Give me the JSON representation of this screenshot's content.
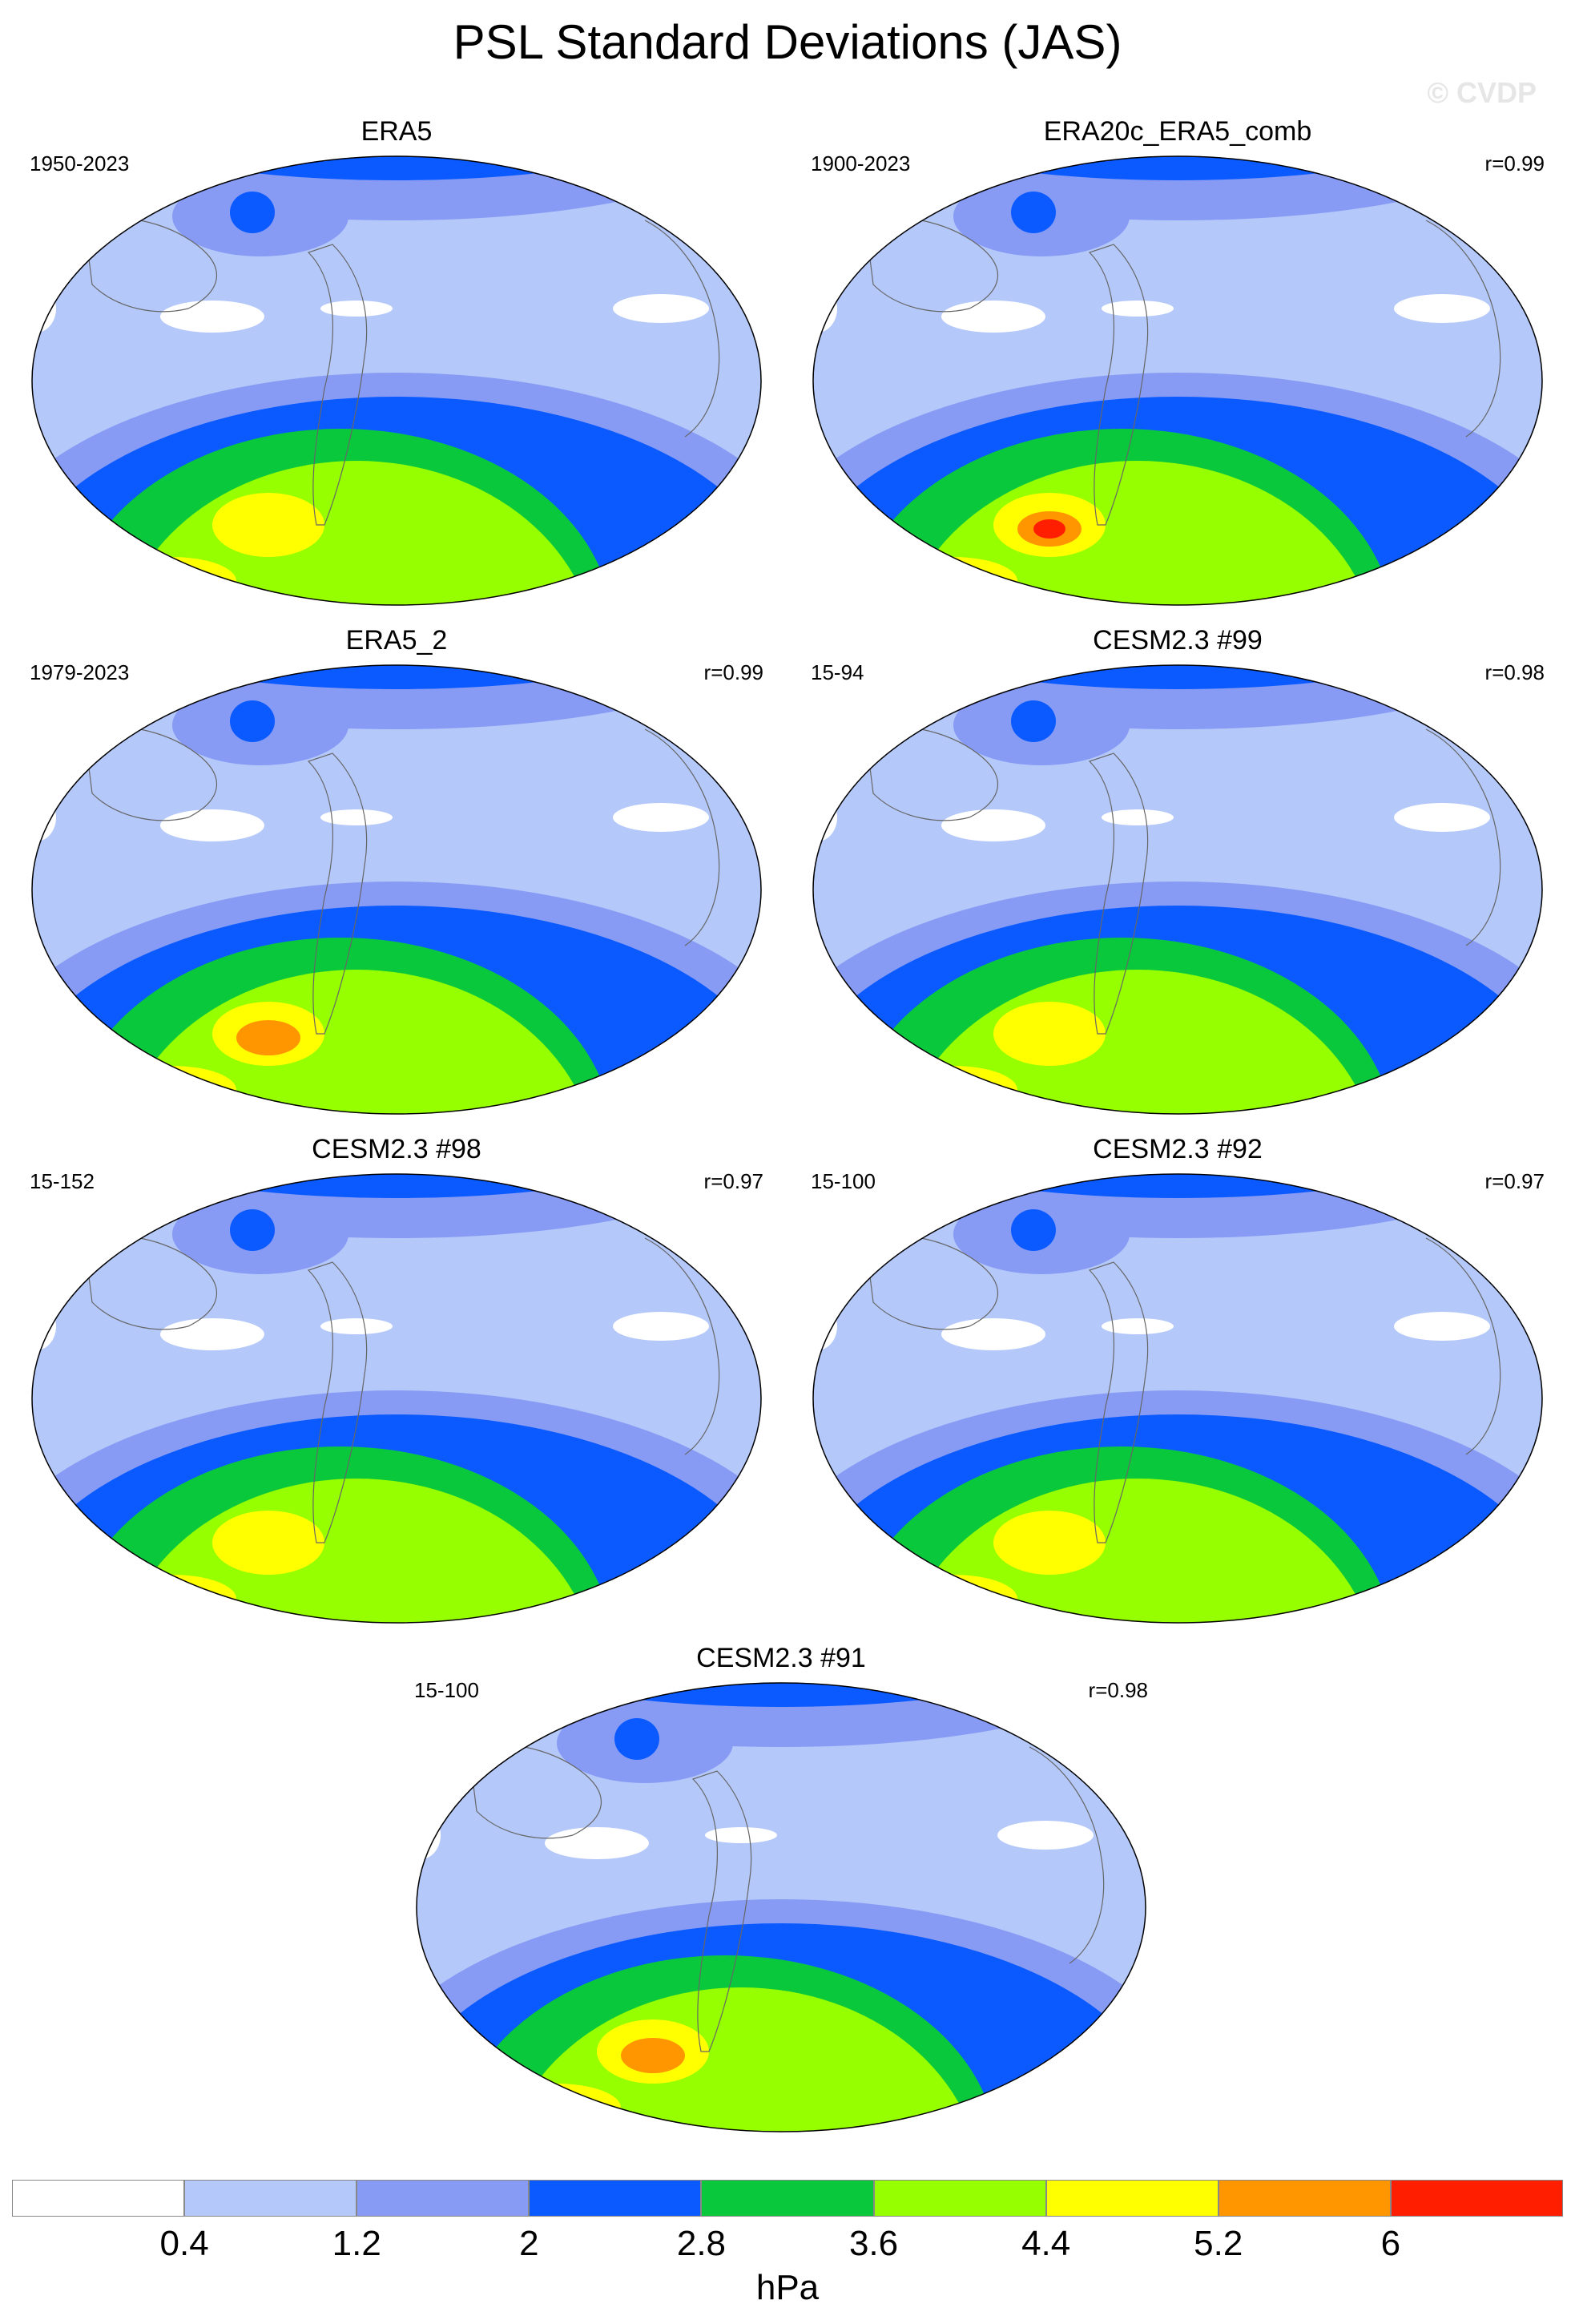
{
  "title": "PSL Standard Deviations (JAS)",
  "watermark": "© CVDP",
  "colors": {
    "c0": "#ffffff",
    "c1": "#b4c8fa",
    "c2": "#879bf5",
    "c3": "#0a5aff",
    "c4": "#0ac83c",
    "c5": "#96ff00",
    "c6": "#ffff00",
    "c7": "#ff9600",
    "c8": "#ff1e00"
  },
  "panels": [
    {
      "name": "ERA5",
      "years": "1950-2023",
      "r": "",
      "peak": 6
    },
    {
      "name": "ERA20c_ERA5_comb",
      "years": "1900-2023",
      "r": "r=0.99",
      "peak": 8
    },
    {
      "name": "ERA5_2",
      "years": "1979-2023",
      "r": "r=0.99",
      "peak": 7
    },
    {
      "name": "CESM2.3 #99",
      "years": "15-94",
      "r": "r=0.98",
      "peak": 6
    },
    {
      "name": "CESM2.3 #98",
      "years": "15-152",
      "r": "r=0.97",
      "peak": 6
    },
    {
      "name": "CESM2.3 #92",
      "years": "15-100",
      "r": "r=0.97",
      "peak": 6
    },
    {
      "name": "CESM2.3 #91",
      "years": "15-100",
      "r": "r=0.98",
      "peak": 7
    }
  ],
  "colorbar": {
    "labels": [
      "0.4",
      "1.2",
      "2",
      "2.8",
      "3.6",
      "4.4",
      "5.2",
      "6"
    ],
    "unit": "hPa"
  }
}
